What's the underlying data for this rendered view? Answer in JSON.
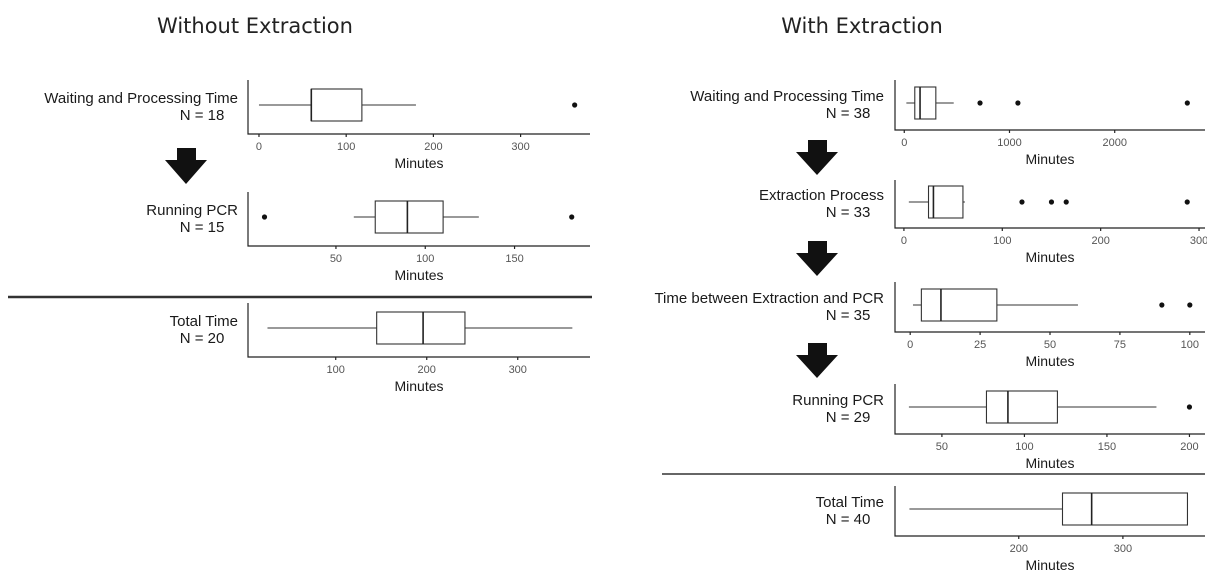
{
  "panels": [
    {
      "title": "Without Extraction"
    },
    {
      "title": "With Extraction"
    }
  ],
  "chart_data": [
    {
      "type": "boxplot",
      "panel": 0,
      "title": "",
      "row_label": "Waiting and Processing Time",
      "n_label": "N = 18",
      "xlabel": "Minutes",
      "xlim": [
        -8,
        375
      ],
      "ticks": [
        0,
        100,
        200,
        300
      ],
      "stats": {
        "min": 0,
        "q1": 60,
        "median": 60,
        "q3": 118,
        "max": 180
      },
      "outliers": [
        362
      ]
    },
    {
      "type": "boxplot",
      "panel": 0,
      "title": "",
      "row_label": "Running PCR",
      "n_label": "N = 15",
      "xlabel": "Minutes",
      "xlim": [
        3,
        190
      ],
      "ticks": [
        50,
        100,
        150
      ],
      "stats": {
        "min": 60,
        "q1": 72,
        "median": 90,
        "q3": 110,
        "max": 130
      },
      "outliers": [
        10,
        182
      ]
    },
    {
      "type": "boxplot",
      "panel": 0,
      "title": "",
      "row_label": "Total Time",
      "n_label": "N = 20",
      "xlabel": "Minutes",
      "xlim": [
        8,
        375
      ],
      "ticks": [
        100,
        200,
        300
      ],
      "stats": {
        "min": 25,
        "q1": 145,
        "median": 196,
        "q3": 242,
        "max": 360
      },
      "outliers": []
    },
    {
      "type": "boxplot",
      "panel": 1,
      "title": "",
      "row_label": "Waiting and Processing Time",
      "n_label": "N = 38",
      "xlabel": "Minutes",
      "xlim": [
        -50,
        2820
      ],
      "ticks": [
        0,
        1000,
        2000
      ],
      "stats": {
        "min": 20,
        "q1": 100,
        "median": 150,
        "q3": 300,
        "max": 470
      },
      "outliers": [
        720,
        1080,
        2690
      ]
    },
    {
      "type": "boxplot",
      "panel": 1,
      "title": "",
      "row_label": "Extraction Process",
      "n_label": "N = 33",
      "xlabel": "Minutes",
      "xlim": [
        -5,
        302
      ],
      "ticks": [
        0,
        100,
        200,
        300
      ],
      "stats": {
        "min": 5,
        "q1": 25,
        "median": 30,
        "q3": 60,
        "max": 62
      },
      "outliers": [
        120,
        150,
        165,
        288
      ]
    },
    {
      "type": "boxplot",
      "panel": 1,
      "title": "",
      "row_label": "Time between Extraction and PCR",
      "n_label": "N = 35",
      "xlabel": "Minutes",
      "xlim": [
        -4,
        104
      ],
      "ticks": [
        0,
        25,
        50,
        75,
        100
      ],
      "stats": {
        "min": 1,
        "q1": 4,
        "median": 11,
        "q3": 31,
        "max": 60
      },
      "outliers": [
        90,
        100
      ]
    },
    {
      "type": "boxplot",
      "panel": 1,
      "title": "",
      "row_label": "Running PCR",
      "n_label": "N = 29",
      "xlabel": "Minutes",
      "xlim": [
        24,
        207
      ],
      "ticks": [
        50,
        100,
        150,
        200
      ],
      "stats": {
        "min": 30,
        "q1": 77,
        "median": 90,
        "q3": 120,
        "max": 180
      },
      "outliers": [
        200
      ]
    },
    {
      "type": "boxplot",
      "panel": 1,
      "title": "",
      "row_label": "Total Time",
      "n_label": "N = 40",
      "xlabel": "Minutes",
      "xlim": [
        85,
        375
      ],
      "ticks": [
        200,
        300
      ],
      "stats": {
        "min": 95,
        "q1": 242,
        "median": 270,
        "q3": 362,
        "max": 362
      },
      "outliers": []
    }
  ]
}
